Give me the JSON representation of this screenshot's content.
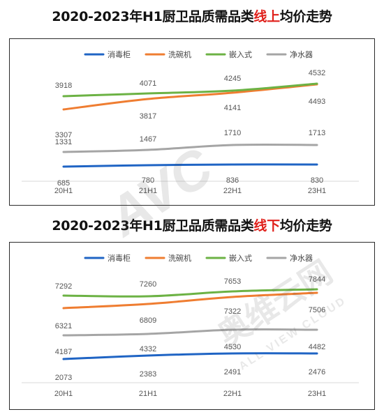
{
  "titles": [
    {
      "pre": "2020-2023年H1厨卫品质需品类",
      "hl": "线上",
      "post": "均价走势"
    },
    {
      "pre": "2020-2023年H1厨卫品质需品类",
      "hl": "线下",
      "post": "均价走势"
    }
  ],
  "watermark": {
    "main": "AVC",
    "cn": "奥维云网",
    "en": "ALL VIEW CLOUD"
  },
  "colors": {
    "消毒柜": "#1f64c4",
    "洗碗机": "#ef7d31",
    "嵌入式": "#6cb244",
    "净水器": "#a5a5a5"
  },
  "chart_data": [
    {
      "type": "line",
      "title": "2020-2023年H1厨卫品质需品类线上均价走势",
      "categories": [
        "20H1",
        "21H1",
        "22H1",
        "23H1"
      ],
      "series": [
        {
          "name": "消毒柜",
          "values": [
            685,
            780,
            836,
            830
          ]
        },
        {
          "name": "洗碗机",
          "values": [
            3307,
            3817,
            4141,
            4493
          ]
        },
        {
          "name": "嵌入式",
          "values": [
            3918,
            4071,
            4245,
            4532
          ]
        },
        {
          "name": "净水器",
          "values": [
            1331,
            1467,
            1710,
            1713
          ]
        }
      ],
      "legend": "top-center",
      "grid": false
    },
    {
      "type": "line",
      "title": "2020-2023年H1厨卫品质需品类线下均价走势",
      "categories": [
        "20H1",
        "21H1",
        "22H1",
        "23H1"
      ],
      "series": [
        {
          "name": "消毒柜",
          "values": [
            2073,
            2383,
            2491,
            2476
          ]
        },
        {
          "name": "洗碗机",
          "values": [
            6321,
            6809,
            7322,
            7506
          ]
        },
        {
          "name": "嵌入式",
          "values": [
            7292,
            7260,
            7653,
            7844
          ]
        },
        {
          "name": "净水器",
          "values": [
            4187,
            4332,
            4530,
            4482
          ]
        }
      ],
      "legend": "top-center",
      "grid": false
    }
  ]
}
